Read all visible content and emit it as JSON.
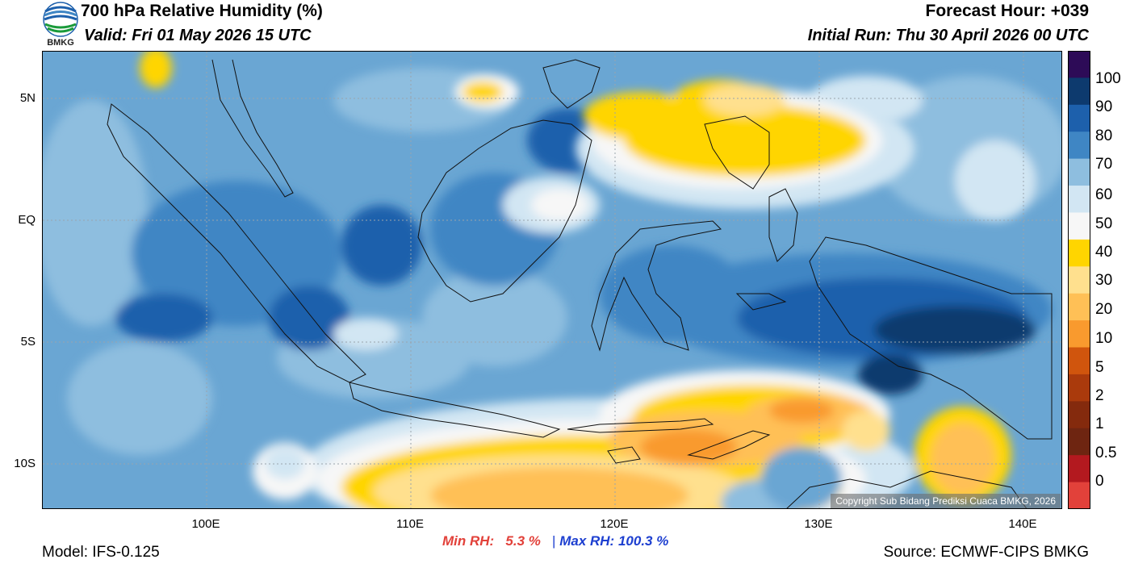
{
  "header": {
    "title": "700 hPa Relative Humidity (%)",
    "valid": "Valid: Fri 01 May 2026 15 UTC",
    "forecast_hour": "Forecast Hour: +039",
    "initial_run": "Initial Run: Thu 30 April 2026 00 UTC",
    "logo_text": "BMKG"
  },
  "map": {
    "lat_labels": [
      "5N",
      "EQ",
      "5S",
      "10S"
    ],
    "lon_labels": [
      "100E",
      "110E",
      "120E",
      "130E",
      "140E"
    ],
    "copyright": "Copyright Sub Bidang Prediksi Cuaca BMKG, 2026"
  },
  "colorbar": {
    "labels": [
      "100",
      "90",
      "80",
      "70",
      "60",
      "50",
      "40",
      "30",
      "20",
      "10",
      "5",
      "2",
      "1",
      "0.5",
      "0"
    ],
    "colors": [
      "#2d0b57",
      "#0d3a6e",
      "#1d60ac",
      "#3f86c4",
      "#8ebedf",
      "#d2e6f3",
      "#f7f7f7",
      "#ffd500",
      "#ffe08e",
      "#ffc056",
      "#f99a2e",
      "#d0550d",
      "#aa3a0c",
      "#842a0d",
      "#6e2511",
      "#b3191f",
      "#e2413a"
    ]
  },
  "stats": {
    "min_label": "Min RH:",
    "min_value": "5.3 %",
    "separator": "|",
    "max_label": "Max RH:",
    "max_value": "100.3 %"
  },
  "footer": {
    "model": "Model: IFS-0.125",
    "source": "Source: ECMWF-CIPS BMKG"
  }
}
